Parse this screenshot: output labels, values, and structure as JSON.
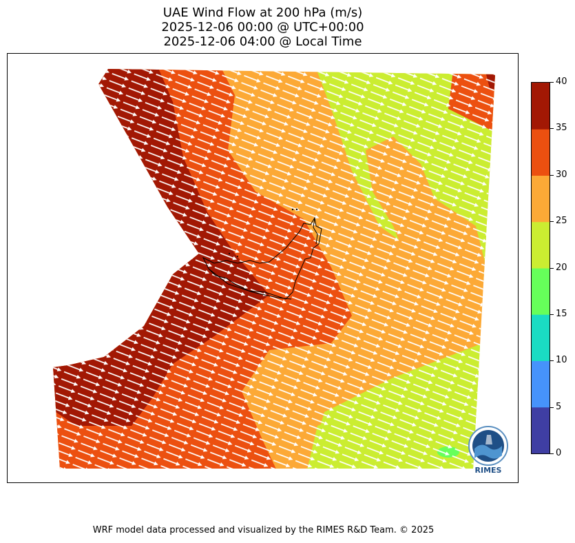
{
  "title": {
    "line1": "UAE Wind Flow at 200 hPa (m/s)",
    "line2": "2025-12-06 00:00 @ UTC+00:00",
    "line3": "2025-12-06 04:00 @ Local Time"
  },
  "colorbar": {
    "ticks": [
      "0",
      "5",
      "10",
      "15",
      "20",
      "25",
      "30",
      "35",
      "40"
    ],
    "colors": [
      "#3f3ea3",
      "#4693fb",
      "#1adcc3",
      "#66ff5a",
      "#cbed31",
      "#fca936",
      "#ec5010",
      "#a21804"
    ]
  },
  "map": {
    "color_far_west": "#a21804",
    "color_west": "#ec5010",
    "color_central": "#fca936",
    "color_east": "#cbed31",
    "color_small_patch": "#66ff5a",
    "arrow_color": "#ffffff",
    "coastline_color": "#000000"
  },
  "logo": {
    "text": "RIMES"
  },
  "footer": {
    "credit": "WRF model data processed and visualized by the RIMES R&D Team. © 2025"
  }
}
